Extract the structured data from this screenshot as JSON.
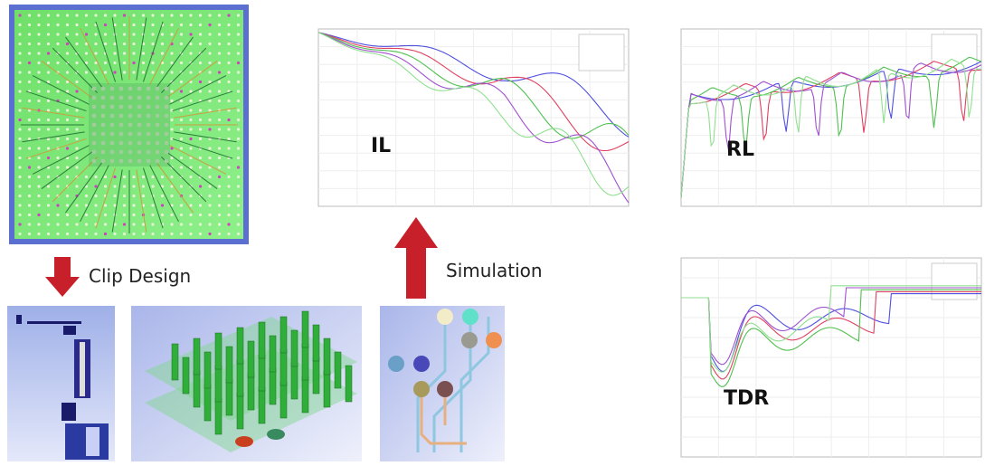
{
  "labels": {
    "clip": "Clip Design",
    "simulation": "Simulation",
    "il": "IL",
    "rl": "RL",
    "tdr": "TDR"
  }
}
